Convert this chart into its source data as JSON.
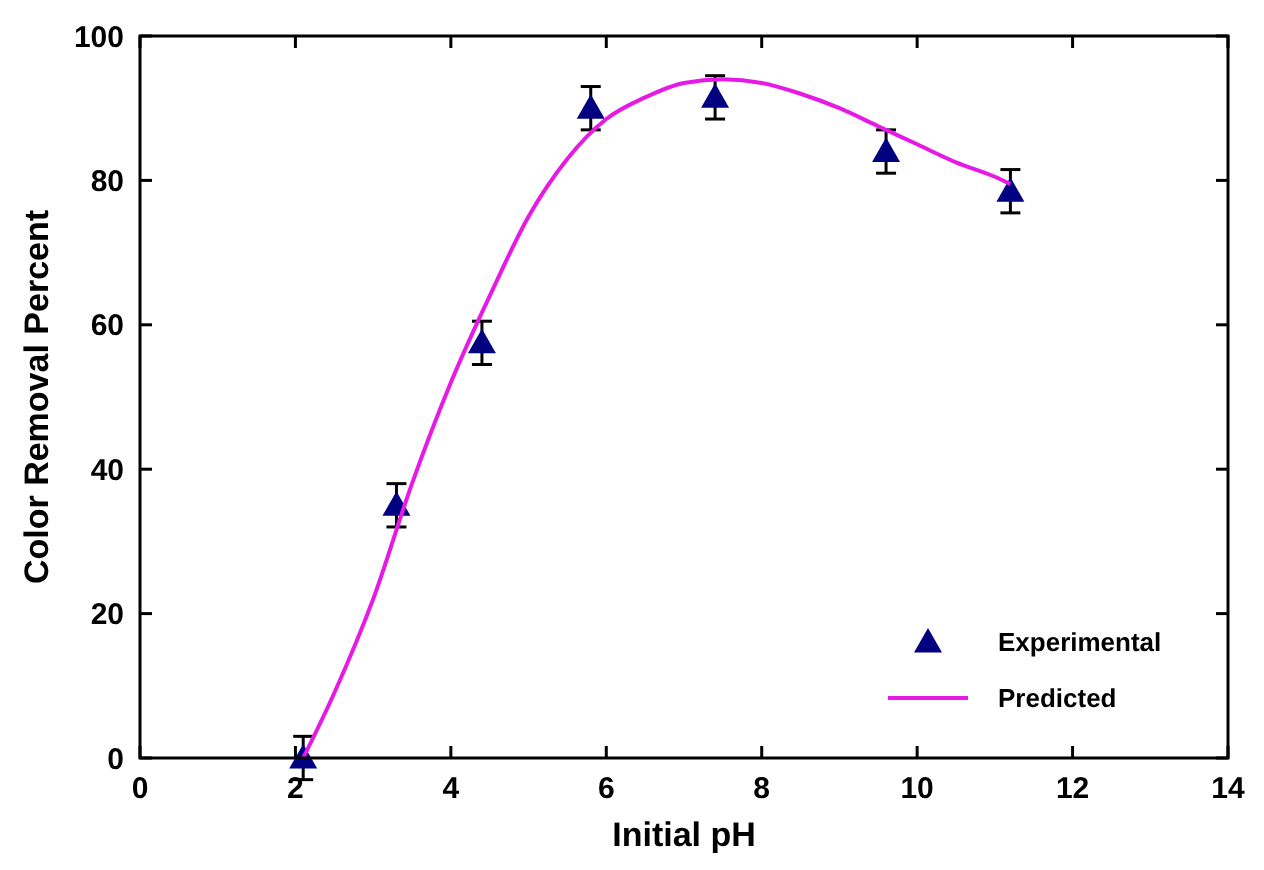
{
  "chart_data": {
    "type": "scatter",
    "xlabel": "Initial pH",
    "ylabel": "Color Removal Percent",
    "xlim": [
      0,
      14
    ],
    "xticks": [
      0,
      2,
      4,
      6,
      8,
      10,
      12,
      14
    ],
    "ylim": [
      0,
      100
    ],
    "yticks": [
      0,
      20,
      40,
      60,
      80,
      100
    ],
    "legend": "bottom right",
    "grid": false,
    "series": [
      {
        "name": "Experimental",
        "marker": "triangle",
        "color": "#000080",
        "x": [
          2.1,
          3.3,
          4.4,
          5.8,
          7.4,
          9.6,
          11.2
        ],
        "values": [
          0,
          35,
          57.5,
          90,
          91.5,
          84,
          78.5
        ],
        "errors": [
          3,
          3,
          3,
          3,
          3,
          3,
          3
        ]
      },
      {
        "name": "Predicted",
        "type": "line",
        "line_style": "solid",
        "color": "#e619e6",
        "x": [
          2.1,
          2.5,
          3,
          3.5,
          4,
          4.5,
          5,
          5.5,
          6,
          6.5,
          7,
          7.5,
          8,
          8.5,
          9,
          9.5,
          10,
          10.5,
          11,
          11.2
        ],
        "values": [
          0,
          9,
          22,
          38,
          52,
          64,
          75,
          83,
          88.5,
          91.5,
          93.5,
          94,
          93.5,
          92,
          90,
          87.5,
          85,
          82.5,
          80.5,
          79.5
        ]
      }
    ]
  }
}
